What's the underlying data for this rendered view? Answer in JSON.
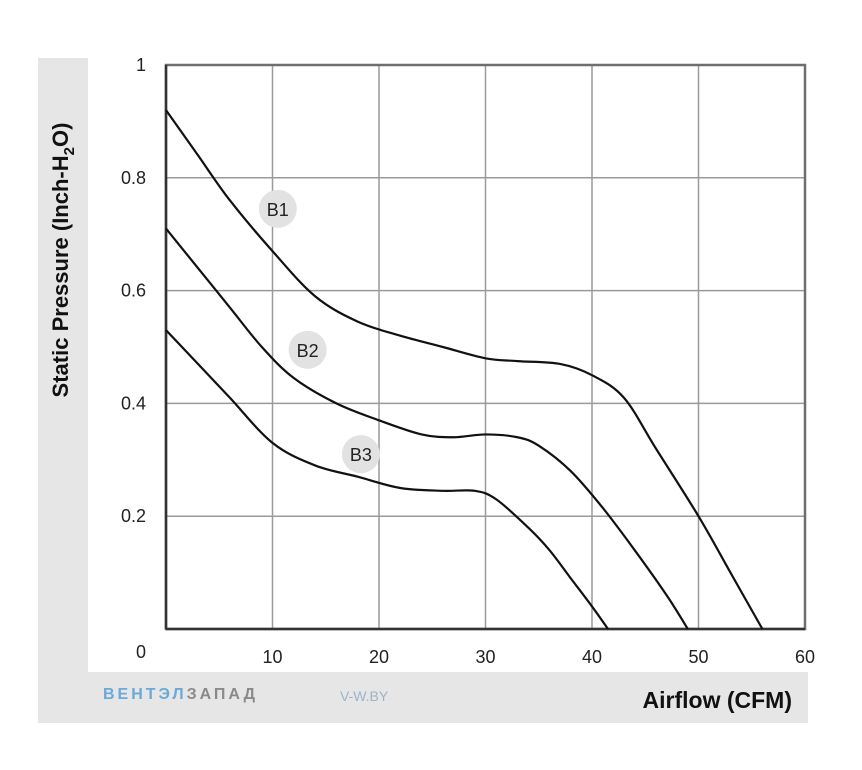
{
  "chart_data": {
    "type": "line",
    "title": "",
    "xlabel": "Airflow (CFM)",
    "ylabel": "Static Pressure (Inch-H",
    "ylabel_sub": "2",
    "ylabel_tail": "O)",
    "xlim": [
      0,
      60
    ],
    "ylim": [
      0,
      1
    ],
    "x_ticks": [
      "10",
      "20",
      "30",
      "40",
      "50",
      "60"
    ],
    "y_ticks": [
      "0.2",
      "0.4",
      "0.6",
      "0.8",
      "1"
    ],
    "origin_label": "0",
    "grid": true,
    "series": [
      {
        "name": "B1",
        "x": [
          0,
          3,
          6,
          10,
          14,
          18,
          22,
          26,
          30,
          33,
          37,
          40,
          43,
          46,
          50,
          53,
          56
        ],
        "y": [
          0.92,
          0.84,
          0.76,
          0.67,
          0.59,
          0.545,
          0.52,
          0.5,
          0.48,
          0.475,
          0.47,
          0.45,
          0.41,
          0.32,
          0.2,
          0.1,
          0.0
        ]
      },
      {
        "name": "B2",
        "x": [
          0,
          3,
          6,
          9,
          12,
          16,
          20,
          24,
          27,
          30,
          33,
          35,
          38,
          41,
          44,
          47,
          49
        ],
        "y": [
          0.71,
          0.64,
          0.57,
          0.5,
          0.445,
          0.4,
          0.37,
          0.345,
          0.34,
          0.345,
          0.34,
          0.325,
          0.28,
          0.215,
          0.14,
          0.06,
          0.0
        ]
      },
      {
        "name": "B3",
        "x": [
          0,
          3,
          6,
          10,
          14,
          18,
          22,
          26,
          29,
          31,
          34,
          36,
          38,
          40,
          41.5
        ],
        "y": [
          0.53,
          0.47,
          0.41,
          0.33,
          0.29,
          0.27,
          0.25,
          0.245,
          0.245,
          0.23,
          0.18,
          0.14,
          0.09,
          0.04,
          0.0
        ]
      }
    ],
    "series_labels": [
      {
        "text": "B1",
        "x": 10.5,
        "y": 0.745
      },
      {
        "text": "B2",
        "x": 13.3,
        "y": 0.495
      },
      {
        "text": "B3",
        "x": 18.3,
        "y": 0.31
      }
    ]
  },
  "watermark": {
    "brand_a": "ВЕНТЭЛ",
    "brand_b": "ЗАПАД",
    "url": "V-W.BY"
  },
  "colors": {
    "line": "#111111",
    "grid": "#9a9a9a",
    "frame": "#e6e6e6",
    "bubble": "#e2e2e2"
  }
}
